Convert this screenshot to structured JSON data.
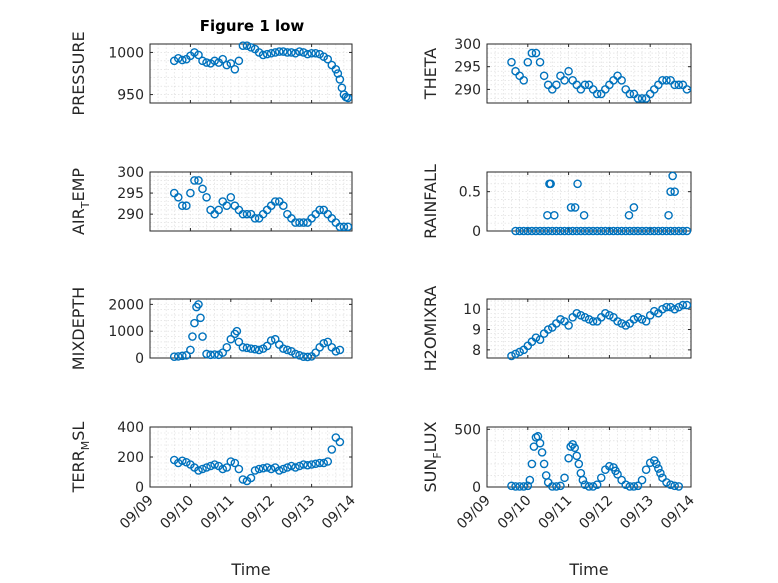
{
  "figure": {
    "title": "Figure 1 low",
    "marker_color": "#0072BD",
    "grid": true,
    "marker": "open-circle"
  },
  "chart_data": [
    {
      "type": "scatter",
      "id": "pressure",
      "title": "Figure 1 low",
      "ylabel": "PRESSURE",
      "ylabel_sub": [],
      "xlim": [
        0,
        5
      ],
      "ylim": [
        940,
        1010
      ],
      "yticks": [
        950,
        1000
      ],
      "ytick_labels": [
        "950",
        "1000"
      ],
      "xticks": [
        0,
        1,
        2,
        3,
        4,
        5
      ],
      "xtick_labels": [],
      "xlabel": "",
      "x": [
        0.6,
        0.7,
        0.8,
        0.9,
        1.0,
        1.1,
        1.2,
        1.3,
        1.4,
        1.5,
        1.6,
        1.7,
        1.8,
        1.9,
        2.0,
        2.1,
        2.2,
        2.3,
        2.4,
        2.5,
        2.6,
        2.7,
        2.8,
        2.9,
        3.0,
        3.1,
        3.2,
        3.3,
        3.4,
        3.5,
        3.6,
        3.7,
        3.8,
        3.9,
        4.0,
        4.1,
        4.2,
        4.3,
        4.4,
        4.5,
        4.6,
        4.65,
        4.7,
        4.75,
        4.8,
        4.85,
        4.9
      ],
      "y": [
        990,
        993,
        991,
        992,
        996,
        1000,
        997,
        990,
        988,
        987,
        990,
        988,
        992,
        985,
        987,
        980,
        990,
        1008,
        1008,
        1006,
        1004,
        1000,
        997,
        998,
        999,
        1000,
        1001,
        1001,
        1000,
        1000,
        999,
        1001,
        1000,
        998,
        999,
        999,
        998,
        995,
        992,
        985,
        980,
        975,
        968,
        958,
        950,
        947,
        946
      ]
    },
    {
      "type": "scatter",
      "id": "theta",
      "ylabel": "THETA",
      "ylabel_sub": [],
      "xlim": [
        0,
        5
      ],
      "ylim": [
        287,
        300
      ],
      "yticks": [
        290,
        295,
        300
      ],
      "ytick_labels": [
        "290",
        "295",
        "300"
      ],
      "xticks": [
        0,
        1,
        2,
        3,
        4,
        5
      ],
      "xtick_labels": [],
      "xlabel": "",
      "x": [
        0.6,
        0.7,
        0.8,
        0.9,
        1.0,
        1.1,
        1.2,
        1.3,
        1.4,
        1.5,
        1.6,
        1.7,
        1.8,
        1.9,
        2.0,
        2.1,
        2.2,
        2.3,
        2.4,
        2.5,
        2.6,
        2.7,
        2.8,
        2.9,
        3.0,
        3.1,
        3.2,
        3.3,
        3.4,
        3.5,
        3.6,
        3.7,
        3.8,
        3.9,
        4.0,
        4.1,
        4.2,
        4.3,
        4.4,
        4.5,
        4.6,
        4.7,
        4.8,
        4.9
      ],
      "y": [
        296,
        294,
        293,
        292,
        296,
        298,
        298,
        296,
        293,
        291,
        290,
        291,
        293,
        292,
        294,
        292,
        291,
        290,
        291,
        291,
        290,
        289,
        289,
        290,
        291,
        292,
        293,
        292,
        290,
        289,
        289,
        288,
        288,
        288,
        289,
        290,
        291,
        292,
        292,
        292,
        291,
        291,
        291,
        290
      ]
    },
    {
      "type": "scatter",
      "id": "air_temp",
      "ylabel": "AIR",
      "ylabel_sub": [
        "T",
        "EMP"
      ],
      "xlim": [
        0,
        5
      ],
      "ylim": [
        286,
        300
      ],
      "yticks": [
        290,
        295,
        300
      ],
      "ytick_labels": [
        "290",
        "295",
        "300"
      ],
      "xticks": [
        0,
        1,
        2,
        3,
        4,
        5
      ],
      "xtick_labels": [],
      "xlabel": "",
      "x": [
        0.6,
        0.7,
        0.8,
        0.9,
        1.0,
        1.1,
        1.2,
        1.3,
        1.4,
        1.5,
        1.6,
        1.7,
        1.8,
        1.9,
        2.0,
        2.1,
        2.2,
        2.3,
        2.4,
        2.5,
        2.6,
        2.7,
        2.8,
        2.9,
        3.0,
        3.1,
        3.2,
        3.3,
        3.4,
        3.5,
        3.6,
        3.7,
        3.8,
        3.9,
        4.0,
        4.1,
        4.2,
        4.3,
        4.4,
        4.5,
        4.6,
        4.7,
        4.8,
        4.9
      ],
      "y": [
        295,
        294,
        292,
        292,
        295,
        298,
        298,
        296,
        294,
        291,
        290,
        291,
        293,
        292,
        294,
        292,
        291,
        290,
        290,
        290,
        289,
        289,
        290,
        291,
        292,
        293,
        293,
        292,
        290,
        289,
        288,
        288,
        288,
        288,
        289,
        290,
        291,
        291,
        290,
        289,
        288,
        287,
        287,
        287
      ]
    },
    {
      "type": "scatter",
      "id": "rainfall",
      "ylabel": "RAINFALL",
      "ylabel_sub": [],
      "xlim": [
        0,
        5
      ],
      "ylim": [
        0,
        0.75
      ],
      "yticks": [
        0,
        0.5
      ],
      "ytick_labels": [
        "0",
        "0.5"
      ],
      "xticks": [
        0,
        1,
        2,
        3,
        4,
        5
      ],
      "xtick_labels": [],
      "xlabel": "",
      "x": [
        0.7,
        0.8,
        0.9,
        1.0,
        1.1,
        1.2,
        1.3,
        1.4,
        1.5,
        1.6,
        1.7,
        1.8,
        1.9,
        2.0,
        2.1,
        2.2,
        2.3,
        2.4,
        2.5,
        2.6,
        2.7,
        2.8,
        2.9,
        3.0,
        3.1,
        3.2,
        3.3,
        3.4,
        3.5,
        3.6,
        3.7,
        3.8,
        3.9,
        4.0,
        4.1,
        4.2,
        4.3,
        4.4,
        4.5,
        4.6,
        4.7,
        4.8,
        4.9,
        1.48,
        1.53,
        1.56,
        1.65,
        2.06,
        2.16,
        2.22,
        2.38,
        3.48,
        3.6,
        4.45,
        4.5,
        4.55,
        4.6
      ],
      "y": [
        0,
        0,
        0,
        0,
        0,
        0,
        0,
        0,
        0,
        0,
        0,
        0,
        0,
        0,
        0,
        0,
        0,
        0,
        0,
        0,
        0,
        0,
        0,
        0,
        0,
        0,
        0,
        0,
        0,
        0,
        0,
        0,
        0,
        0,
        0,
        0,
        0,
        0,
        0,
        0,
        0,
        0,
        0,
        0.2,
        0.6,
        0.6,
        0.2,
        0.3,
        0.3,
        0.6,
        0.2,
        0.2,
        0.3,
        0.2,
        0.5,
        0.7,
        0.5
      ]
    },
    {
      "type": "scatter",
      "id": "mixdepth",
      "ylabel": "MIXDEPTH",
      "ylabel_sub": [],
      "xlim": [
        0,
        5
      ],
      "ylim": [
        0,
        2200
      ],
      "yticks": [
        0,
        1000,
        2000
      ],
      "ytick_labels": [
        "0",
        "1000",
        "2000"
      ],
      "xticks": [
        0,
        1,
        2,
        3,
        4,
        5
      ],
      "xtick_labels": [],
      "xlabel": "",
      "x": [
        0.6,
        0.7,
        0.8,
        0.9,
        1.0,
        1.05,
        1.1,
        1.15,
        1.2,
        1.25,
        1.3,
        1.4,
        1.5,
        1.6,
        1.7,
        1.8,
        1.9,
        2.0,
        2.1,
        2.15,
        2.2,
        2.3,
        2.4,
        2.5,
        2.6,
        2.7,
        2.8,
        2.9,
        3.0,
        3.1,
        3.2,
        3.3,
        3.4,
        3.5,
        3.6,
        3.7,
        3.8,
        3.9,
        4.0,
        4.1,
        4.2,
        4.3,
        4.4,
        4.5,
        4.6,
        4.7
      ],
      "y": [
        50,
        60,
        80,
        100,
        300,
        800,
        1300,
        1900,
        2000,
        1500,
        800,
        150,
        120,
        130,
        120,
        200,
        400,
        700,
        900,
        1000,
        600,
        400,
        380,
        350,
        330,
        300,
        350,
        450,
        650,
        700,
        500,
        350,
        300,
        250,
        150,
        100,
        50,
        40,
        60,
        200,
        400,
        550,
        600,
        400,
        250,
        300
      ]
    },
    {
      "type": "scatter",
      "id": "h2omixra",
      "ylabel": "H2OMIXRA",
      "ylabel_sub": [],
      "xlim": [
        0,
        5
      ],
      "ylim": [
        7.6,
        10.5
      ],
      "yticks": [
        8,
        9,
        10
      ],
      "ytick_labels": [
        "8",
        "9",
        "10"
      ],
      "xticks": [
        0,
        1,
        2,
        3,
        4,
        5
      ],
      "xtick_labels": [],
      "xlabel": "",
      "x": [
        0.6,
        0.7,
        0.8,
        0.9,
        1.0,
        1.1,
        1.2,
        1.3,
        1.4,
        1.5,
        1.6,
        1.7,
        1.8,
        1.9,
        2.0,
        2.1,
        2.2,
        2.3,
        2.4,
        2.5,
        2.6,
        2.7,
        2.8,
        2.9,
        3.0,
        3.1,
        3.2,
        3.3,
        3.4,
        3.5,
        3.6,
        3.7,
        3.8,
        3.9,
        4.0,
        4.1,
        4.2,
        4.3,
        4.4,
        4.5,
        4.6,
        4.7,
        4.8,
        4.9
      ],
      "y": [
        7.7,
        7.8,
        7.9,
        8.0,
        8.2,
        8.4,
        8.6,
        8.5,
        8.8,
        9.0,
        9.1,
        9.3,
        9.5,
        9.4,
        9.2,
        9.6,
        9.8,
        9.7,
        9.6,
        9.5,
        9.4,
        9.4,
        9.6,
        9.8,
        9.7,
        9.6,
        9.4,
        9.3,
        9.2,
        9.3,
        9.5,
        9.6,
        9.5,
        9.4,
        9.7,
        9.9,
        9.8,
        10.0,
        10.1,
        10.1,
        10.0,
        10.1,
        10.2,
        10.2
      ]
    },
    {
      "type": "scatter",
      "id": "terr_msl",
      "ylabel": "TERR",
      "ylabel_sub": [
        "M",
        "SL"
      ],
      "xlim": [
        0,
        5
      ],
      "ylim": [
        0,
        400
      ],
      "yticks": [
        0,
        200,
        400
      ],
      "ytick_labels": [
        "0",
        "200",
        "400"
      ],
      "xticks": [
        0,
        1,
        2,
        3,
        4,
        5
      ],
      "xtick_labels": [
        "09/09",
        "09/10",
        "09/11",
        "09/12",
        "09/13",
        "09/14"
      ],
      "xlabel": "Time",
      "x": [
        0.6,
        0.7,
        0.8,
        0.9,
        1.0,
        1.1,
        1.2,
        1.3,
        1.4,
        1.5,
        1.6,
        1.7,
        1.8,
        1.9,
        2.0,
        2.1,
        2.2,
        2.3,
        2.4,
        2.5,
        2.6,
        2.7,
        2.8,
        2.9,
        3.0,
        3.1,
        3.2,
        3.3,
        3.4,
        3.5,
        3.6,
        3.7,
        3.8,
        3.9,
        4.0,
        4.1,
        4.2,
        4.3,
        4.4,
        4.5,
        4.6,
        4.7
      ],
      "y": [
        180,
        160,
        175,
        165,
        150,
        130,
        110,
        120,
        130,
        140,
        150,
        140,
        120,
        130,
        170,
        160,
        120,
        50,
        40,
        60,
        110,
        120,
        125,
        130,
        120,
        130,
        110,
        120,
        130,
        140,
        130,
        140,
        150,
        145,
        150,
        155,
        160,
        160,
        170,
        250,
        330,
        300
      ]
    },
    {
      "type": "scatter",
      "id": "sun_flux",
      "ylabel": "SUN",
      "ylabel_sub": [
        "F",
        "LUX"
      ],
      "xlim": [
        0,
        5
      ],
      "ylim": [
        0,
        520
      ],
      "yticks": [
        0,
        500
      ],
      "ytick_labels": [
        "0",
        "500"
      ],
      "xticks": [
        0,
        1,
        2,
        3,
        4,
        5
      ],
      "xtick_labels": [
        "09/09",
        "09/10",
        "09/11",
        "09/12",
        "09/13",
        "09/14"
      ],
      "xlabel": "Time",
      "x": [
        0.6,
        0.7,
        0.8,
        0.9,
        1.0,
        1.05,
        1.1,
        1.15,
        1.2,
        1.25,
        1.3,
        1.35,
        1.4,
        1.45,
        1.5,
        1.6,
        1.7,
        1.8,
        1.9,
        2.0,
        2.05,
        2.1,
        2.15,
        2.2,
        2.25,
        2.3,
        2.35,
        2.4,
        2.5,
        2.6,
        2.7,
        2.8,
        2.9,
        3.0,
        3.1,
        3.15,
        3.2,
        3.3,
        3.4,
        3.5,
        3.6,
        3.7,
        3.8,
        3.9,
        4.0,
        4.1,
        4.15,
        4.2,
        4.25,
        4.3,
        4.4,
        4.5,
        4.6,
        4.7
      ],
      "y": [
        10,
        5,
        5,
        5,
        10,
        60,
        200,
        350,
        430,
        440,
        380,
        300,
        200,
        100,
        40,
        5,
        5,
        10,
        80,
        250,
        350,
        370,
        340,
        270,
        200,
        120,
        60,
        20,
        5,
        5,
        20,
        80,
        150,
        180,
        170,
        140,
        110,
        60,
        20,
        5,
        5,
        10,
        60,
        150,
        210,
        230,
        200,
        160,
        120,
        80,
        40,
        20,
        10,
        5
      ]
    }
  ]
}
